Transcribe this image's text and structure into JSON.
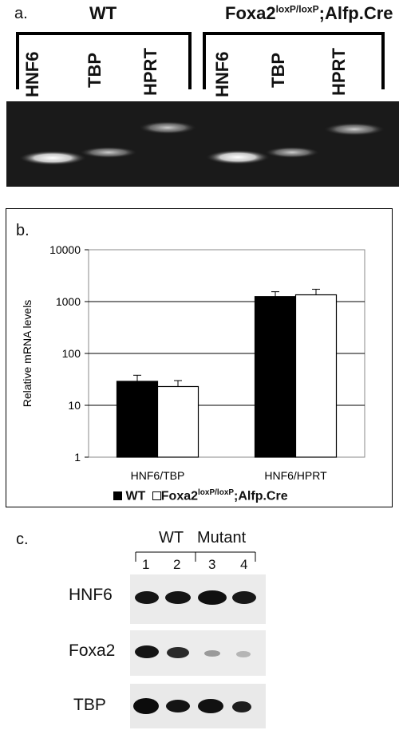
{
  "panel_a": {
    "label": "a.",
    "group_wt": "WT",
    "group_mut_base": "Foxa2",
    "group_mut_sup": "loxP/loxP",
    "group_mut_tail": ";Alfp.Cre",
    "lanes": [
      "HNF6",
      "TBP",
      "HPRT",
      "HNF6",
      "TBP",
      "HPRT"
    ]
  },
  "panel_b": {
    "label": "b.",
    "legend_wt": "WT",
    "legend_mut_base": "Foxa2",
    "legend_mut_sup": "loxP/loxP",
    "legend_mut_tail": ";Alfp.Cre"
  },
  "chart_data": {
    "type": "bar",
    "ylabel": "Relative mRNA levels",
    "yscale": "log",
    "ylim": [
      1,
      10000
    ],
    "yticks": [
      "1",
      "10",
      "100",
      "1000",
      "10000"
    ],
    "categories": [
      "HNF6/TBP",
      "HNF6/HPRT"
    ],
    "series": [
      {
        "name": "WT",
        "values": [
          29,
          1250
        ],
        "error": [
          9,
          300
        ],
        "color": "#000000"
      },
      {
        "name": "Foxa2loxP/loxP;Alfp.Cre",
        "values": [
          23,
          1350
        ],
        "error": [
          7,
          380
        ],
        "color": "#ffffff"
      }
    ],
    "grid": true,
    "legend": "bottom"
  },
  "panel_c": {
    "label": "c.",
    "group_wt": "WT",
    "group_mut": "Mutant",
    "lanes": [
      "1",
      "2",
      "3",
      "4"
    ],
    "rows": [
      "HNF6",
      "Foxa2",
      "TBP"
    ]
  }
}
